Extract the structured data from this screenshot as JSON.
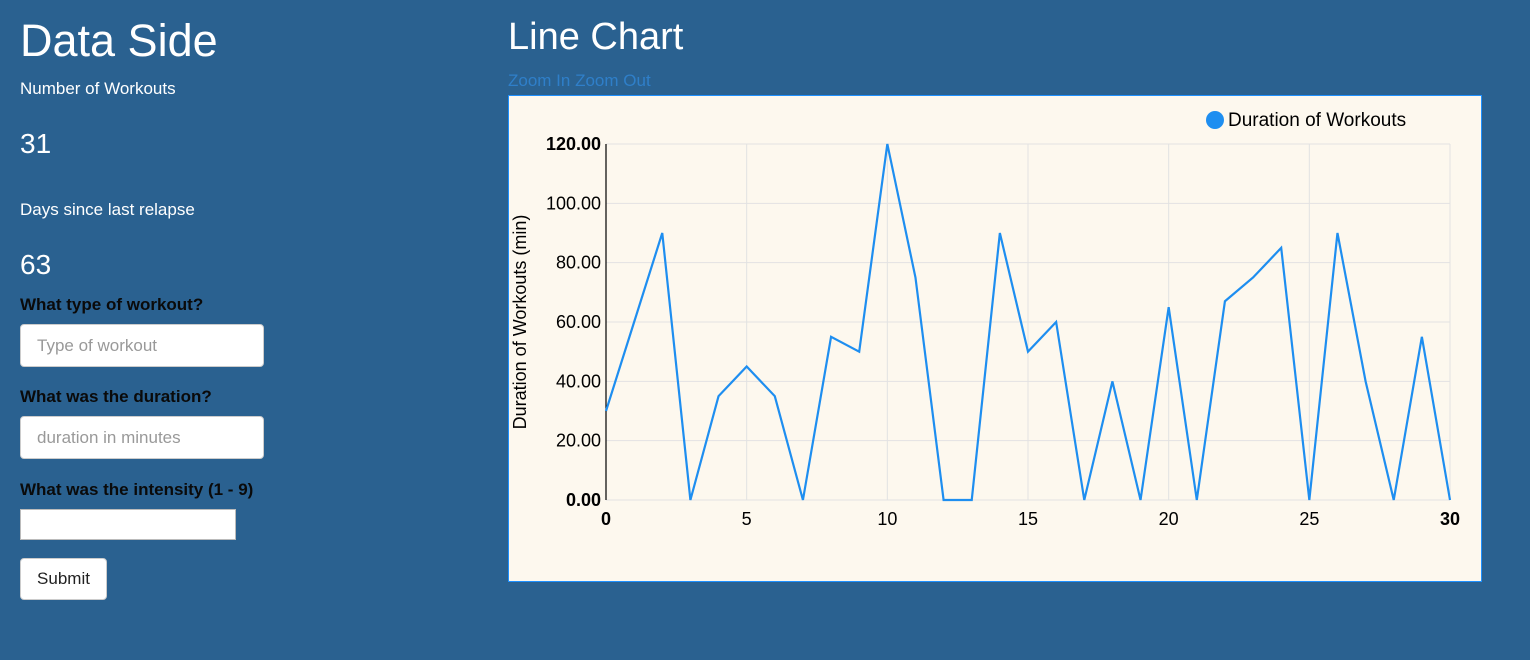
{
  "sidebar": {
    "title": "Data Side",
    "workouts_label": "Number of Workouts",
    "workouts_value": "31",
    "relapse_label": "Days since last relapse",
    "relapse_value": "63"
  },
  "form": {
    "type_question": "What type of workout?",
    "type_placeholder": "Type of workout",
    "duration_question": "What was the duration?",
    "duration_placeholder": "duration in minutes",
    "intensity_question": "What was the intensity (1 - 9)",
    "intensity_value": "",
    "submit_label": "Submit"
  },
  "chart_panel": {
    "heading": "Line Chart",
    "zoom_in_label": "Zoom In",
    "zoom_out_label": "Zoom Out"
  },
  "colors": {
    "background": "#2a6190",
    "chart_background": "#fdf8ee",
    "series_color": "#1e8ef0",
    "zoom_link": "#2f7fc9"
  },
  "chart_data": {
    "type": "line",
    "ylabel": "Duration of Workouts (min)",
    "xlabel": "",
    "xlim": [
      0,
      30
    ],
    "ylim": [
      0,
      120
    ],
    "x_ticks": [
      "0",
      "5",
      "10",
      "15",
      "20",
      "25",
      "30"
    ],
    "y_ticks": [
      "0.00",
      "20.00",
      "40.00",
      "60.00",
      "80.00",
      "100.00",
      "120.00"
    ],
    "grid": true,
    "legend_position": "top-right",
    "series": [
      {
        "name": "Duration of Workouts",
        "color": "#1e8ef0",
        "x": [
          0,
          1,
          2,
          3,
          4,
          5,
          6,
          7,
          8,
          9,
          10,
          11,
          12,
          13,
          14,
          15,
          16,
          17,
          18,
          19,
          20,
          21,
          22,
          23,
          24,
          25,
          26,
          27,
          28,
          29,
          30
        ],
        "values": [
          30,
          60,
          90,
          0,
          35,
          45,
          35,
          0,
          55,
          50,
          120,
          75,
          0,
          0,
          90,
          50,
          60,
          0,
          40,
          0,
          65,
          0,
          67,
          75,
          85,
          0,
          90,
          40,
          0,
          55,
          0
        ]
      }
    ]
  }
}
